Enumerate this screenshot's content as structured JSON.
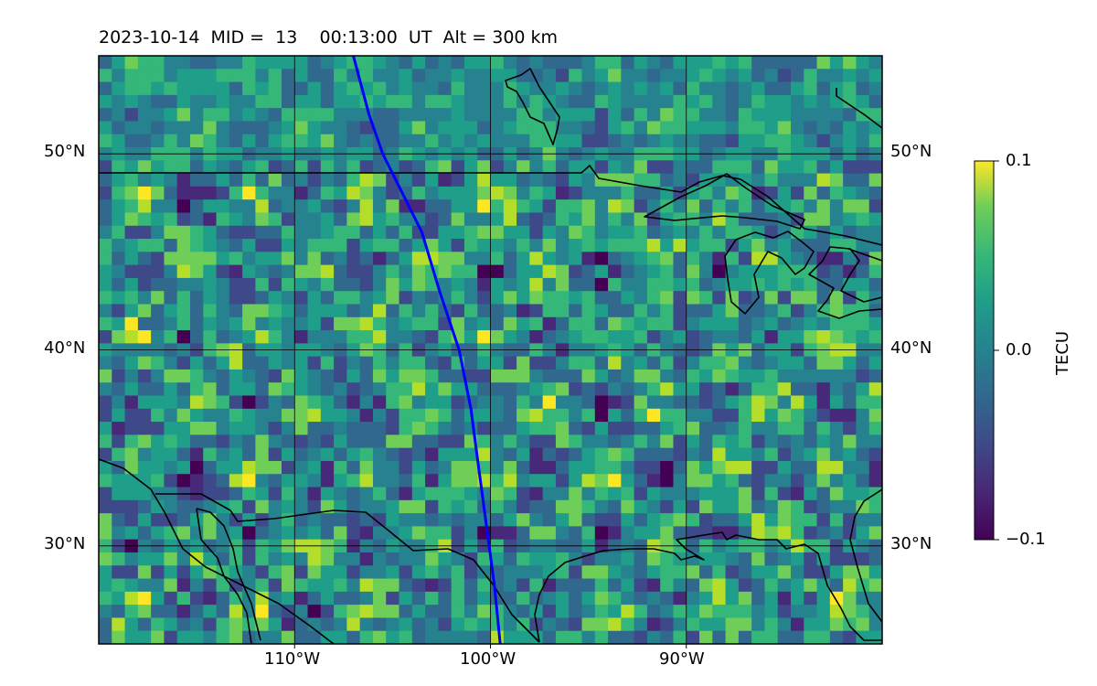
{
  "title": "2023-10-14  MID =  13    00:13:00  UT  Alt = 300 km",
  "map": {
    "lat_range": [
      25,
      55
    ],
    "lon_range": [
      -120,
      -80
    ],
    "gridlines": true,
    "lat_ticks": [
      {
        "value": 50,
        "label": "50°N"
      },
      {
        "value": 40,
        "label": "40°N"
      },
      {
        "value": 30,
        "label": "30°N"
      }
    ],
    "lon_ticks": [
      {
        "value": -110,
        "label": "110°W"
      },
      {
        "value": -100,
        "label": "100°W"
      },
      {
        "value": -90,
        "label": "90°W"
      }
    ],
    "track_color": "#0000ff",
    "track": [
      [
        -107,
        55
      ],
      [
        -106.2,
        52
      ],
      [
        -105.5,
        50
      ],
      [
        -104.5,
        48
      ],
      [
        -103.5,
        46
      ],
      [
        -102.6,
        43
      ],
      [
        -101.6,
        40
      ],
      [
        -101,
        37
      ],
      [
        -100.6,
        34
      ],
      [
        -100.2,
        31
      ],
      [
        -99.8,
        28
      ],
      [
        -99.5,
        25
      ]
    ]
  },
  "colorbar": {
    "label": "TECU",
    "colormap": "viridis",
    "min": -0.1,
    "max": 0.1,
    "ticks": [
      {
        "value": 0.1,
        "label": "0.1"
      },
      {
        "value": 0.0,
        "label": "0.0"
      },
      {
        "value": -0.1,
        "label": "−0.1"
      }
    ]
  }
}
